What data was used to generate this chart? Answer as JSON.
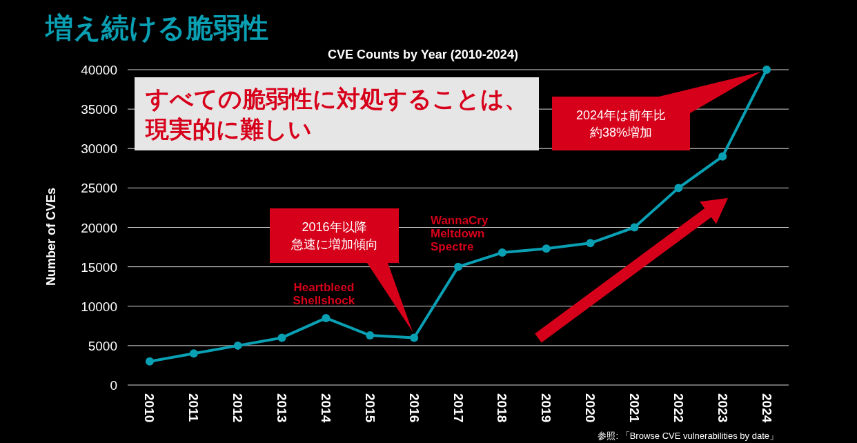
{
  "chart_data": {
    "type": "line",
    "title": "増え続ける脆弱性",
    "subtitle": "CVE Counts by Year (2010-2024)",
    "ylabel": "Number of CVEs",
    "categories": [
      "2010",
      "2011",
      "2012",
      "2013",
      "2014",
      "2015",
      "2016",
      "2017",
      "2018",
      "2019",
      "2020",
      "2021",
      "2022",
      "2023",
      "2024"
    ],
    "series": [
      {
        "color": "#0aa0b4",
        "values": [
          3000,
          4000,
          5000,
          6000,
          8500,
          6300,
          6000,
          15000,
          16800,
          17300,
          18000,
          20000,
          25000,
          29000,
          40000
        ]
      }
    ],
    "ylim": [
      0,
      40000
    ],
    "yticks": [
      0,
      5000,
      10000,
      15000,
      20000,
      25000,
      30000,
      35000,
      40000
    ],
    "grid": "y",
    "marker": "circle",
    "line_style": "solid",
    "annotations": [
      "2024年は前年比約38%増加",
      "2016年以降急速に増加傾向",
      {
        "text": "Heartbleed\nShellshock",
        "x": "2014",
        "y": 8500
      },
      {
        "text": "WannaCry\nMeltdown\nSpectre",
        "x": "2017",
        "y": 15000
      },
      "すべての脆弱性に対処することは、現実的に難しい",
      "参照: 「Browse CVE vulnerabilities by date」"
    ]
  }
}
